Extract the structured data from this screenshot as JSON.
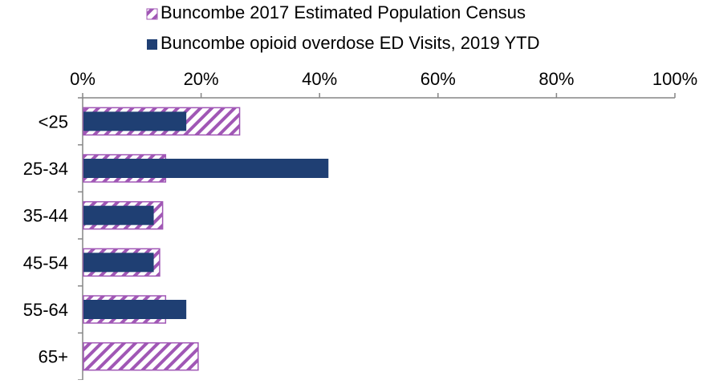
{
  "chart_data": {
    "type": "bar",
    "orientation": "horizontal",
    "categories": [
      "<25",
      "25-34",
      "35-44",
      "45-54",
      "55-64",
      "65+"
    ],
    "series": [
      {
        "name": "Buncombe 2017 Estimated Population Census",
        "values": [
          26.5,
          14.0,
          13.5,
          13.0,
          14.0,
          19.5
        ],
        "color": "#A057B5",
        "pattern": "diagonal-hatch"
      },
      {
        "name": "Buncombe opioid overdose ED Visits, 2019 YTD",
        "values": [
          17.5,
          41.5,
          12.0,
          12.0,
          17.5,
          null
        ],
        "color": "#1F3F73",
        "pattern": "solid"
      }
    ],
    "x_ticks": [
      "0%",
      "20%",
      "40%",
      "60%",
      "80%",
      "100%"
    ],
    "xlim": [
      0,
      100
    ],
    "x_axis_position": "top",
    "legend_position": "top",
    "grid": false,
    "title": "",
    "xlabel": "",
    "ylabel": ""
  }
}
